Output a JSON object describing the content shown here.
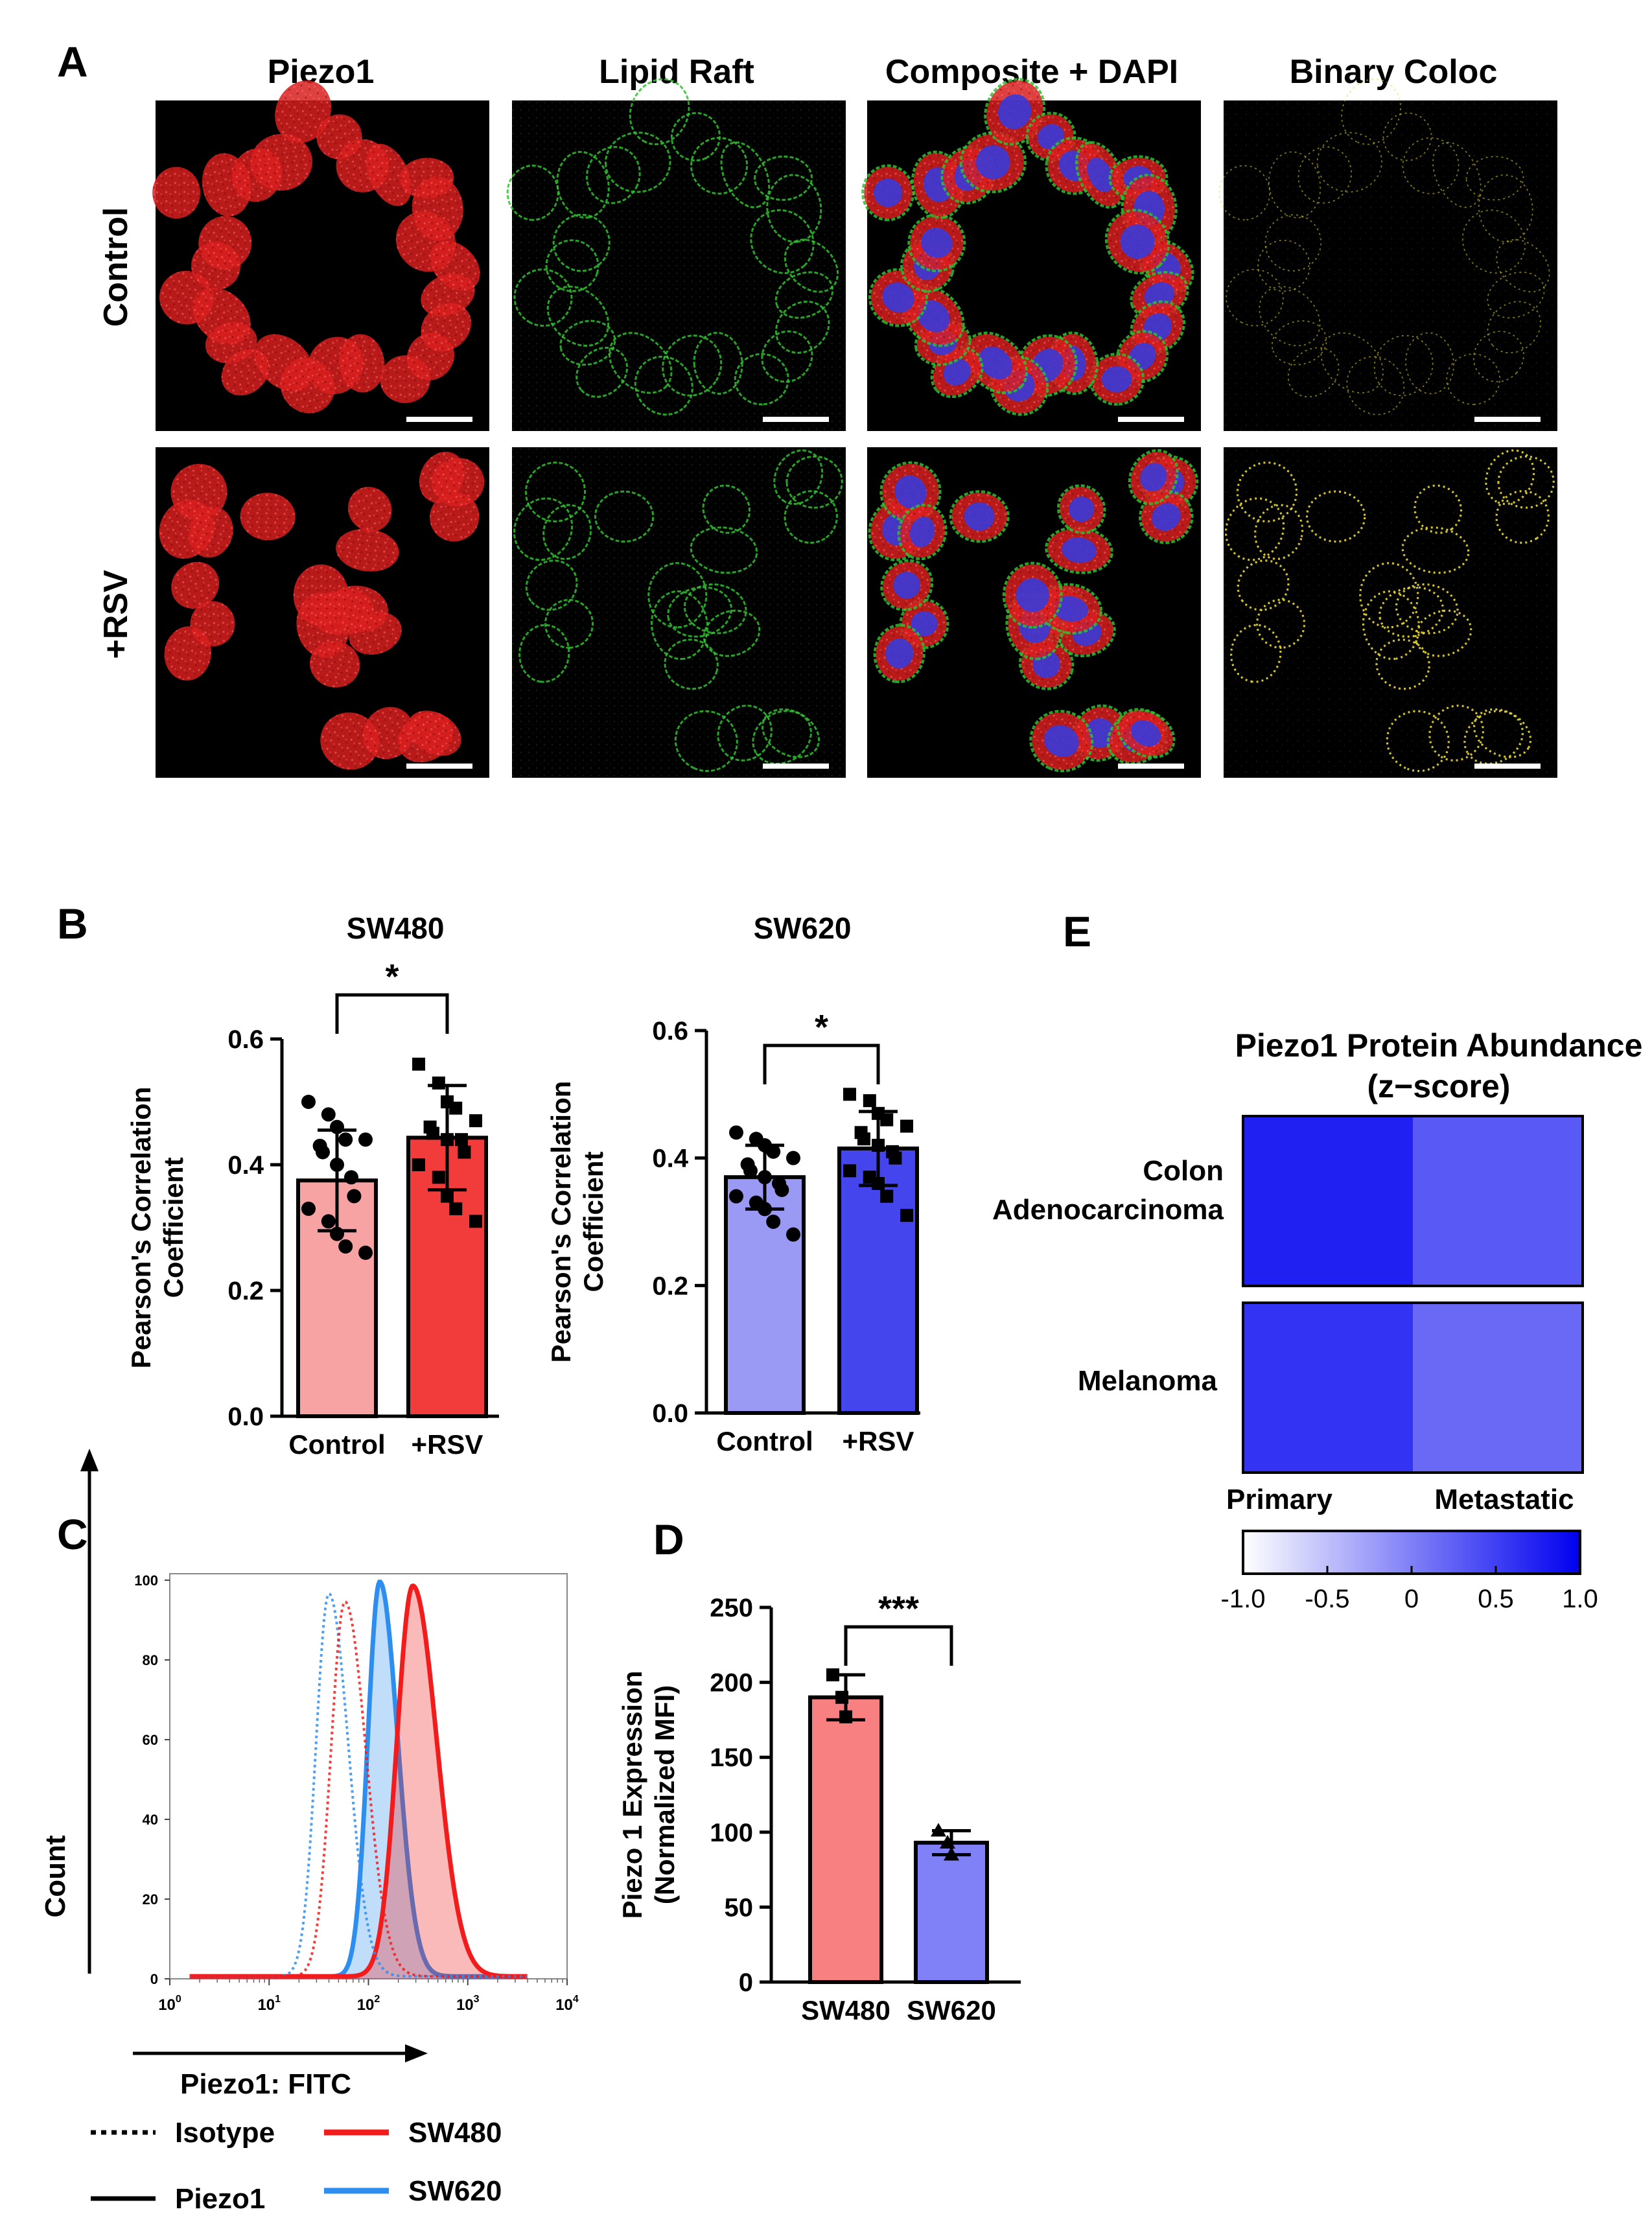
{
  "panel_letters": {
    "a": "A",
    "b": "B",
    "c": "C",
    "d": "D",
    "e": "E"
  },
  "panel_a": {
    "columns": [
      "Piezo1",
      "Lipid Raft",
      "Composite + DAPI",
      "Binary Coloc"
    ],
    "rows": [
      "Control",
      "+RSV"
    ],
    "colors": {
      "piezo1": "#d81e1e",
      "lipid_raft": "#2fbf2f",
      "dapi": "#3a3ad8",
      "coloc": "#e8d830",
      "background": "#000000",
      "scale_bar": "#ffffff"
    }
  },
  "colors": {
    "sw480_control_fill": "#f7a3a3",
    "sw480_rsv_fill": "#f23b3b",
    "sw620_control_fill": "#9a9af5",
    "sw620_rsv_fill": "#4545ee",
    "sw480_line": "#f21c1c",
    "sw620_line": "#2e8ef0",
    "d_sw480_fill": "#f98080",
    "d_sw620_fill": "#8080f7",
    "heat_low": "#ffffff",
    "heat_high": "#0000f0"
  },
  "chart_data": [
    {
      "id": "B-SW480",
      "type": "bar",
      "title": "SW480",
      "categories": [
        "Control",
        "+RSV"
      ],
      "values": [
        0.375,
        0.443
      ],
      "sd": [
        0.08,
        0.083
      ],
      "ylabel": "Pearson's Correlation Coefficient",
      "ylabel_lines": [
        "Pearson's Correlation",
        "Coefficient"
      ],
      "ylim": [
        0,
        0.6
      ],
      "yticks": [
        "0.0",
        "0.2",
        "0.4",
        "0.6"
      ],
      "significance": "*",
      "points": [
        [
          0.5,
          0.48,
          0.46,
          0.44,
          0.44,
          0.43,
          0.42,
          0.4,
          0.38,
          0.35,
          0.33,
          0.31,
          0.29,
          0.27,
          0.26
        ],
        [
          0.56,
          0.53,
          0.5,
          0.49,
          0.47,
          0.46,
          0.45,
          0.44,
          0.44,
          0.42,
          0.4,
          0.38,
          0.35,
          0.33,
          0.31
        ]
      ]
    },
    {
      "id": "B-SW620",
      "type": "bar",
      "title": "SW620",
      "categories": [
        "Control",
        "+RSV"
      ],
      "values": [
        0.37,
        0.415
      ],
      "sd": [
        0.05,
        0.058
      ],
      "ylabel": "Pearson's Correlation Coefficient",
      "ylabel_lines": [
        "Pearson's Correlation",
        "Coefficient"
      ],
      "ylim": [
        0,
        0.6
      ],
      "yticks": [
        "0.0",
        "0.2",
        "0.4",
        "0.6"
      ],
      "significance": "*",
      "points": [
        [
          0.44,
          0.43,
          0.42,
          0.41,
          0.4,
          0.39,
          0.38,
          0.37,
          0.36,
          0.35,
          0.34,
          0.33,
          0.32,
          0.3,
          0.28
        ],
        [
          0.5,
          0.49,
          0.47,
          0.46,
          0.45,
          0.44,
          0.43,
          0.42,
          0.41,
          0.4,
          0.38,
          0.37,
          0.36,
          0.34,
          0.31
        ]
      ]
    },
    {
      "id": "C",
      "type": "line",
      "xlabel": "Piezo1: FITC",
      "ylabel": "Count",
      "xscale": "log",
      "xlim": [
        1,
        10000
      ],
      "ylim": [
        0,
        100
      ],
      "yticks": [
        "0",
        "20",
        "40",
        "60",
        "80",
        "100"
      ],
      "xticks": [
        {
          "base": "10",
          "exp": "0"
        },
        {
          "base": "10",
          "exp": "1"
        },
        {
          "base": "10",
          "exp": "2"
        },
        {
          "base": "10",
          "exp": "3"
        },
        {
          "base": "10",
          "exp": "4"
        }
      ],
      "series": [
        {
          "name": "Isotype",
          "cell": "SW620",
          "style": "dotted",
          "center": 40,
          "peak": 96,
          "width": 0.13,
          "fill": false
        },
        {
          "name": "Isotype",
          "cell": "SW480",
          "style": "dotted",
          "center": 58,
          "peak": 94,
          "width": 0.14,
          "fill": false
        },
        {
          "name": "Piezo1",
          "cell": "SW620",
          "style": "solid",
          "center": 130,
          "peak": 99,
          "width": 0.12,
          "fill": true
        },
        {
          "name": "Piezo1",
          "cell": "SW480",
          "style": "solid",
          "center": 280,
          "peak": 98,
          "width": 0.16,
          "fill": true
        }
      ],
      "legend": {
        "style_items": [
          "Isotype",
          "Piezo1"
        ],
        "color_items": [
          "SW480",
          "SW620"
        ],
        "placement": "bottom"
      }
    },
    {
      "id": "D",
      "type": "bar",
      "categories": [
        "SW480",
        "SW620"
      ],
      "values": [
        190,
        93
      ],
      "sd": [
        15,
        8
      ],
      "ylabel_lines": [
        "Piezo 1 Expression",
        "(Normalized MFI)"
      ],
      "ylim": [
        0,
        250
      ],
      "yticks": [
        "0",
        "50",
        "100",
        "150",
        "200",
        "250"
      ],
      "significance": "***",
      "points": [
        [
          205,
          190,
          177
        ],
        [
          101,
          93,
          85
        ]
      ]
    },
    {
      "id": "E",
      "type": "heatmap",
      "title_lines": [
        "Piezo1 Protein Abundance",
        "(z−score)"
      ],
      "rows": [
        [
          "Colon",
          "Adenocarcinoma"
        ],
        [
          "Melanoma"
        ]
      ],
      "columns": [
        "Primary",
        "Metastatic"
      ],
      "values": [
        [
          0.75,
          0.3
        ],
        [
          0.6,
          0.18
        ]
      ],
      "colorbar": {
        "range": [
          -1,
          1
        ],
        "ticks": [
          "-1.0",
          "-0.5",
          "0",
          "0.5",
          "1.0"
        ]
      }
    }
  ]
}
